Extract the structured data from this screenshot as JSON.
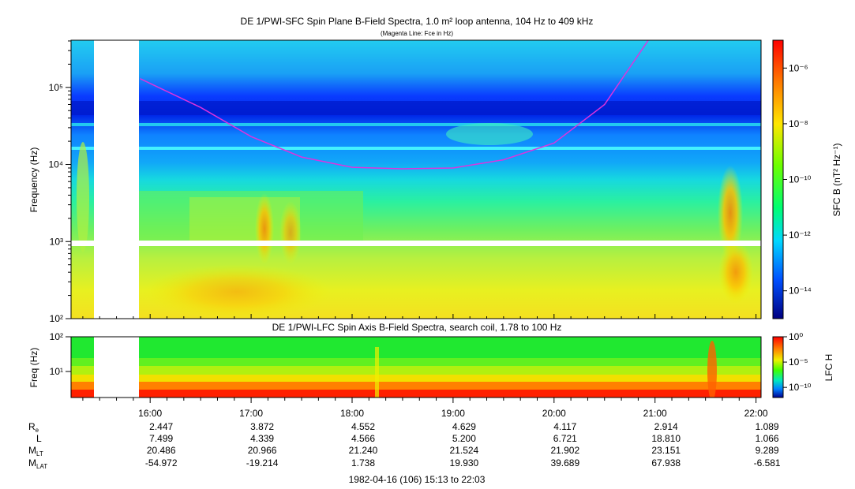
{
  "chart_data": [
    {
      "type": "heatmap",
      "title": "DE 1/PWI-SFC  Spin Plane B-Field Spectra, 1.0 m² loop antenna, 104 Hz to 409 kHz",
      "subtitle": "(Magenta Line: Fce in Hz)",
      "ylabel": "Frequency (Hz)",
      "yscale": "log",
      "ylim": [
        100,
        409000
      ],
      "yticks": [
        "10²",
        "10³",
        "10⁴",
        "10⁵"
      ],
      "colorbar_label": "SFC B (nT² Hz⁻¹)",
      "colorbar_scale": "log",
      "colorbar_range": [
        1e-15,
        1e-05
      ],
      "colorbar_ticks": [
        "10⁻⁶",
        "10⁻⁸",
        "10⁻¹⁰",
        "10⁻¹²",
        "10⁻¹⁴"
      ],
      "colormap": [
        "#000088",
        "#0000ff",
        "#00b0ff",
        "#00ffcc",
        "#00ff40",
        "#80ff00",
        "#ffff00",
        "#ff9000",
        "#ff0000"
      ],
      "fce_line": {
        "color": "#dd33dd",
        "time": [
          "15:54",
          "16:30",
          "17:00",
          "17:30",
          "18:00",
          "18:30",
          "19:00",
          "19:30",
          "20:00",
          "20:30",
          "20:56"
        ],
        "fce_hz": [
          130000,
          55000,
          23000,
          12500,
          9200,
          8800,
          9000,
          11500,
          19000,
          60000,
          409000
        ]
      },
      "data_gap": [
        "15:18",
        "15:44"
      ],
      "band_gap_hz": [
        900,
        1100
      ]
    },
    {
      "type": "heatmap",
      "title": "DE 1/PWI-LFC  Spin Axis B-Field Spectra, search coil, 1.78 to 100 Hz",
      "ylabel": "Freq (Hz)",
      "yscale": "log",
      "ylim": [
        1.78,
        100
      ],
      "yticks": [
        "10²",
        "10¹"
      ],
      "colorbar_label": "LFC H",
      "colorbar_scale": "log",
      "colorbar_range": [
        1e-12,
        1
      ],
      "colorbar_ticks": [
        "10⁰",
        "10⁻⁵",
        "10⁻¹⁰"
      ],
      "bands": [
        {
          "freq_range_hz": [
            25,
            100
          ],
          "level": "1e-8"
        },
        {
          "freq_range_hz": [
            12,
            25
          ],
          "level": "1e-6"
        },
        {
          "freq_range_hz": [
            6,
            12
          ],
          "level": "1e-5"
        },
        {
          "freq_range_hz": [
            4,
            6
          ],
          "level": "1e-3"
        },
        {
          "freq_range_hz": [
            2.6,
            4
          ],
          "level": "1e-2"
        },
        {
          "freq_range_hz": [
            1.78,
            2.6
          ],
          "level": "1e-1"
        }
      ],
      "data_gap": [
        "15:18",
        "15:44"
      ]
    }
  ],
  "x_axis": {
    "start": "15:13",
    "end": "22:03",
    "ticks": [
      "16:00",
      "17:00",
      "18:00",
      "19:00",
      "20:00",
      "21:00",
      "22:00"
    ]
  },
  "ephemeris": {
    "rows": [
      {
        "label": "R",
        "sub": "e",
        "values": [
          "2.447",
          "3.872",
          "4.552",
          "4.629",
          "4.117",
          "2.914",
          "1.089"
        ]
      },
      {
        "label": "L",
        "sub": "",
        "values": [
          "7.499",
          "4.339",
          "4.566",
          "5.200",
          "6.721",
          "18.810",
          "1.066"
        ]
      },
      {
        "label": "M",
        "sub": "LT",
        "values": [
          "20.486",
          "20.966",
          "21.240",
          "21.524",
          "21.902",
          "23.151",
          "9.289"
        ]
      },
      {
        "label": "M",
        "sub": "LAT",
        "values": [
          "-54.972",
          "-19.214",
          "1.738",
          "19.930",
          "39.689",
          "67.938",
          "-6.581"
        ]
      }
    ]
  },
  "footer": "1982-04-16 (106) 15:13 to 22:03"
}
